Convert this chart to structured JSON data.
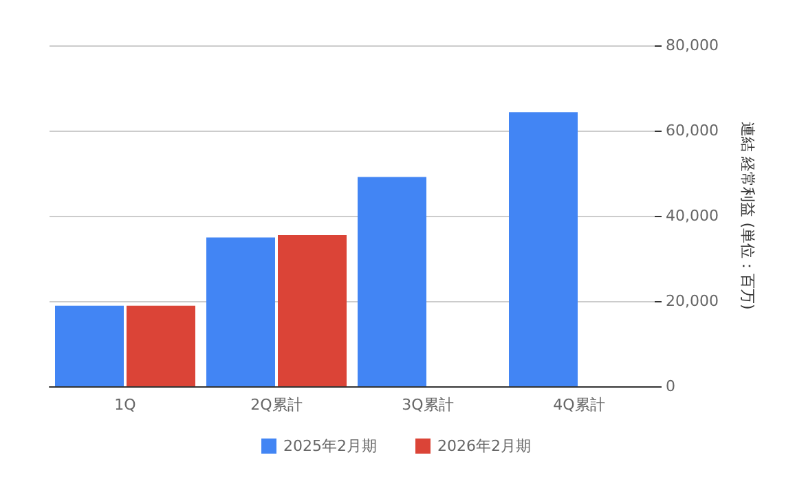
{
  "chart_data": {
    "type": "bar",
    "ylabel": "連結 経常利益 (単位：百万)",
    "categories": [
      "1Q",
      "2Q累計",
      "3Q累計",
      "4Q累計"
    ],
    "series": [
      {
        "name": "2025年2月期",
        "color": "#4285f4",
        "values": [
          18900,
          34900,
          49100,
          64300
        ]
      },
      {
        "name": "2026年2月期",
        "color": "#db4437",
        "values": [
          18900,
          35500,
          null,
          null
        ]
      }
    ],
    "ylim": [
      0,
      80000
    ],
    "yticks": [
      {
        "value": 0,
        "label": "0"
      },
      {
        "value": 20000,
        "label": "20,000"
      },
      {
        "value": 40000,
        "label": "40,000"
      },
      {
        "value": 60000,
        "label": "60,000"
      },
      {
        "value": 80000,
        "label": "80,000"
      }
    ],
    "grid": "y",
    "legend": "bottom"
  }
}
